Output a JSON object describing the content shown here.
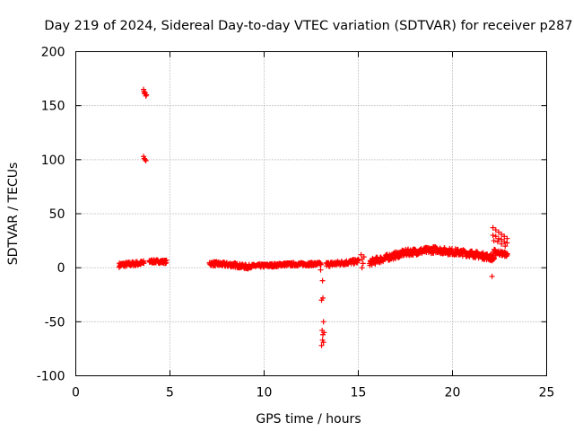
{
  "chart_data": {
    "type": "scatter",
    "title": "Day 219 of 2024, Sidereal Day-to-day VTEC variation (SDTVAR) for receiver p287",
    "xlabel": "GPS time / hours",
    "ylabel": "SDTVAR / TECUs",
    "xlim": [
      0,
      25
    ],
    "ylim": [
      -100,
      200
    ],
    "xticks": [
      0,
      5,
      10,
      15,
      20,
      25
    ],
    "yticks": [
      -100,
      -50,
      0,
      50,
      100,
      150,
      200
    ],
    "grid": true,
    "marker": "plus",
    "color": "#ff0000",
    "series": [
      {
        "name": "SDTVAR",
        "segments": [
          {
            "x0": 2.3,
            "x1": 3.6,
            "y0": 2.5,
            "y1": 4.5,
            "spread": 2
          },
          {
            "x0": 3.9,
            "x1": 4.8,
            "y0": 6,
            "y1": 5.5,
            "spread": 1.5
          },
          {
            "x0": 7.1,
            "x1": 8.4,
            "y0": 4,
            "y1": 2.5,
            "spread": 2
          },
          {
            "x0": 8.4,
            "x1": 9.2,
            "y0": 2.5,
            "y1": 0.5,
            "spread": 2
          },
          {
            "x0": 9.2,
            "x1": 10.8,
            "y0": 1.5,
            "y1": 2.5,
            "spread": 1.5
          },
          {
            "x0": 10.8,
            "x1": 13.0,
            "y0": 3,
            "y1": 3.5,
            "spread": 1.5
          },
          {
            "x0": 13.3,
            "x1": 15.0,
            "y0": 3,
            "y1": 6,
            "spread": 2
          },
          {
            "x0": 15.6,
            "x1": 17.5,
            "y0": 5,
            "y1": 14,
            "spread": 3
          },
          {
            "x0": 17.5,
            "x1": 19.3,
            "y0": 14,
            "y1": 17,
            "spread": 3
          },
          {
            "x0": 19.3,
            "x1": 21.0,
            "y0": 16,
            "y1": 13,
            "spread": 3
          },
          {
            "x0": 21.0,
            "x1": 22.2,
            "y0": 13,
            "y1": 9,
            "spread": 3
          },
          {
            "x0": 22.2,
            "x1": 22.9,
            "y0": 15,
            "y1": 12,
            "spread": 2
          }
        ],
        "points": [
          {
            "x": 3.6,
            "y": 165
          },
          {
            "x": 3.62,
            "y": 163
          },
          {
            "x": 3.65,
            "y": 161
          },
          {
            "x": 3.68,
            "y": 162
          },
          {
            "x": 3.72,
            "y": 159
          },
          {
            "x": 3.75,
            "y": 160
          },
          {
            "x": 3.6,
            "y": 103
          },
          {
            "x": 3.64,
            "y": 101
          },
          {
            "x": 3.68,
            "y": 100
          },
          {
            "x": 3.72,
            "y": 99
          },
          {
            "x": 13.0,
            "y": -2
          },
          {
            "x": 13.1,
            "y": -12
          },
          {
            "x": 13.05,
            "y": -30
          },
          {
            "x": 13.12,
            "y": -28
          },
          {
            "x": 13.15,
            "y": -50
          },
          {
            "x": 13.08,
            "y": -58
          },
          {
            "x": 13.12,
            "y": -62
          },
          {
            "x": 13.18,
            "y": -60
          },
          {
            "x": 13.1,
            "y": -67
          },
          {
            "x": 13.15,
            "y": -69
          },
          {
            "x": 13.05,
            "y": -72
          },
          {
            "x": 15.15,
            "y": 12
          },
          {
            "x": 15.2,
            "y": 8
          },
          {
            "x": 15.25,
            "y": 4
          },
          {
            "x": 15.2,
            "y": 0
          },
          {
            "x": 15.3,
            "y": 10
          },
          {
            "x": 22.15,
            "y": 37
          },
          {
            "x": 22.3,
            "y": 35
          },
          {
            "x": 22.45,
            "y": 33
          },
          {
            "x": 22.6,
            "y": 31
          },
          {
            "x": 22.75,
            "y": 29
          },
          {
            "x": 22.9,
            "y": 27
          },
          {
            "x": 22.15,
            "y": 30
          },
          {
            "x": 22.3,
            "y": 29
          },
          {
            "x": 22.45,
            "y": 27
          },
          {
            "x": 22.6,
            "y": 26
          },
          {
            "x": 22.75,
            "y": 24
          },
          {
            "x": 22.9,
            "y": 23
          },
          {
            "x": 22.2,
            "y": 25
          },
          {
            "x": 22.4,
            "y": 24
          },
          {
            "x": 22.6,
            "y": 22
          },
          {
            "x": 22.8,
            "y": 20
          },
          {
            "x": 22.1,
            "y": -8
          }
        ]
      }
    ]
  }
}
